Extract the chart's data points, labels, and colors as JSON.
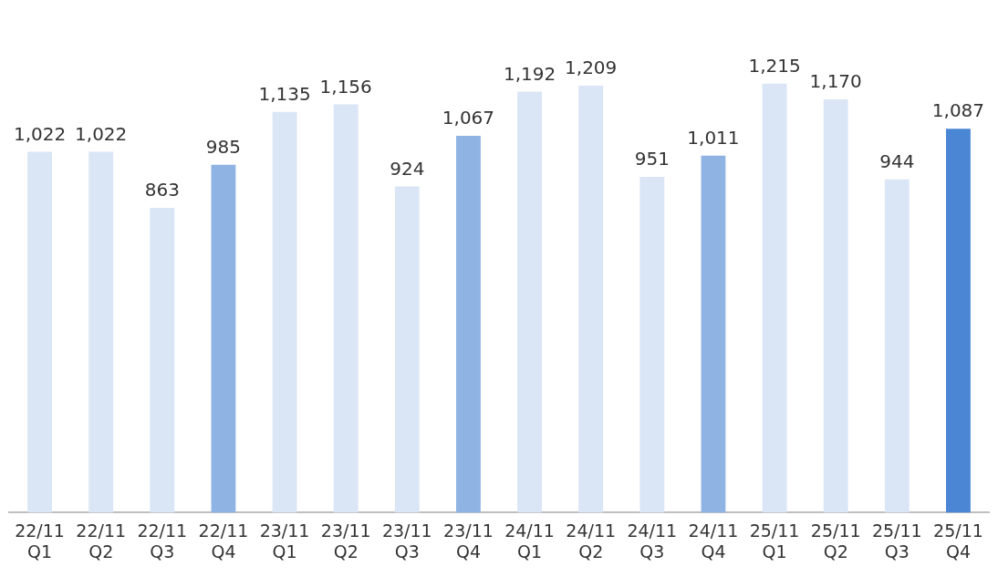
{
  "chart_data": {
    "type": "bar",
    "categories": [
      "22/11\nQ1",
      "22/11\nQ2",
      "22/11\nQ3",
      "22/11\nQ4",
      "23/11\nQ1",
      "23/11\nQ2",
      "23/11\nQ3",
      "23/11\nQ4",
      "24/11\nQ1",
      "24/11\nQ2",
      "24/11\nQ3",
      "24/11\nQ4",
      "25/11\nQ1",
      "25/11\nQ2",
      "25/11\nQ3",
      "25/11\nQ4"
    ],
    "values": [
      1022,
      1022,
      863,
      985,
      1135,
      1156,
      924,
      1067,
      1192,
      1209,
      951,
      1011,
      1215,
      1170,
      944,
      1087
    ],
    "colors": [
      "#dae5f5",
      "#dae5f5",
      "#dae5f5",
      "#8fb4e3",
      "#dae5f5",
      "#dae5f5",
      "#dae5f5",
      "#8fb4e3",
      "#dae5f5",
      "#dae5f5",
      "#dae5f5",
      "#8fb4e3",
      "#dae5f5",
      "#dae5f5",
      "#dae5f5",
      "#4a86d4"
    ],
    "value_labels": [
      "1,022",
      "1,022",
      "863",
      "985",
      "1,135",
      "1,156",
      "924",
      "1,067",
      "1,192",
      "1,209",
      "951",
      "1,011",
      "1,215",
      "1,170",
      "944",
      "1,087"
    ],
    "grid": false,
    "legend": false
  }
}
